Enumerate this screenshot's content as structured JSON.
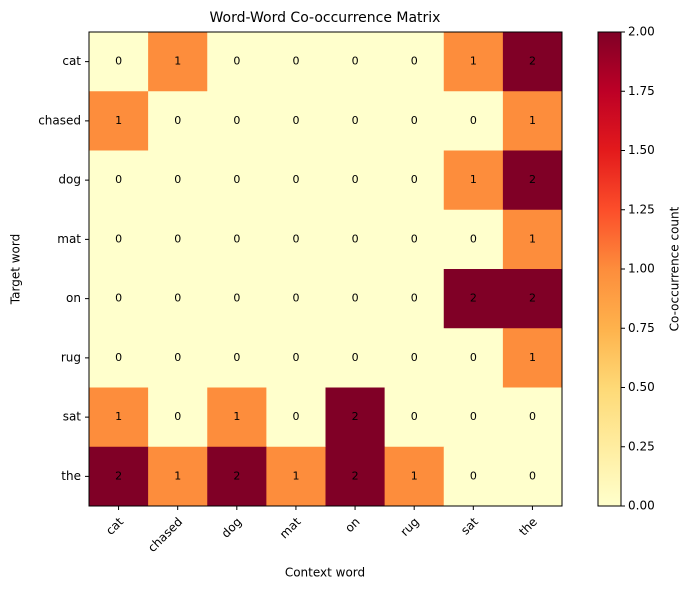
{
  "chart_data": {
    "type": "heatmap",
    "title": "Word-Word Co-occurrence Matrix",
    "xlabel": "Context word",
    "ylabel": "Target word",
    "x_categories": [
      "cat",
      "chased",
      "dog",
      "mat",
      "on",
      "rug",
      "sat",
      "the"
    ],
    "y_categories": [
      "cat",
      "chased",
      "dog",
      "mat",
      "on",
      "rug",
      "sat",
      "the"
    ],
    "values": [
      [
        0,
        1,
        0,
        0,
        0,
        0,
        1,
        2
      ],
      [
        1,
        0,
        0,
        0,
        0,
        0,
        0,
        1
      ],
      [
        0,
        0,
        0,
        0,
        0,
        0,
        1,
        2
      ],
      [
        0,
        0,
        0,
        0,
        0,
        0,
        0,
        1
      ],
      [
        0,
        0,
        0,
        0,
        0,
        0,
        2,
        2
      ],
      [
        0,
        0,
        0,
        0,
        0,
        0,
        0,
        1
      ],
      [
        1,
        0,
        1,
        0,
        2,
        0,
        0,
        0
      ],
      [
        2,
        1,
        2,
        1,
        2,
        1,
        0,
        0
      ]
    ],
    "colormap": [
      "#ffffcc",
      "#ffeda0",
      "#fed976",
      "#feb24c",
      "#fd8d3c",
      "#fc4e2a",
      "#e31a1c",
      "#bd0026",
      "#800026"
    ],
    "colorbar": {
      "label": "Co-occurrence count",
      "lim": [
        0,
        2
      ],
      "ticks": [
        {
          "value": 0,
          "label": "0.00"
        },
        {
          "value": 0.25,
          "label": "0.25"
        },
        {
          "value": 0.5,
          "label": "0.50"
        },
        {
          "value": 0.75,
          "label": "0.75"
        },
        {
          "value": 1,
          "label": "1.00"
        },
        {
          "value": 1.25,
          "label": "1.25"
        },
        {
          "value": 1.5,
          "label": "1.50"
        },
        {
          "value": 1.75,
          "label": "1.75"
        },
        {
          "value": 2,
          "label": "2.00"
        }
      ]
    }
  }
}
